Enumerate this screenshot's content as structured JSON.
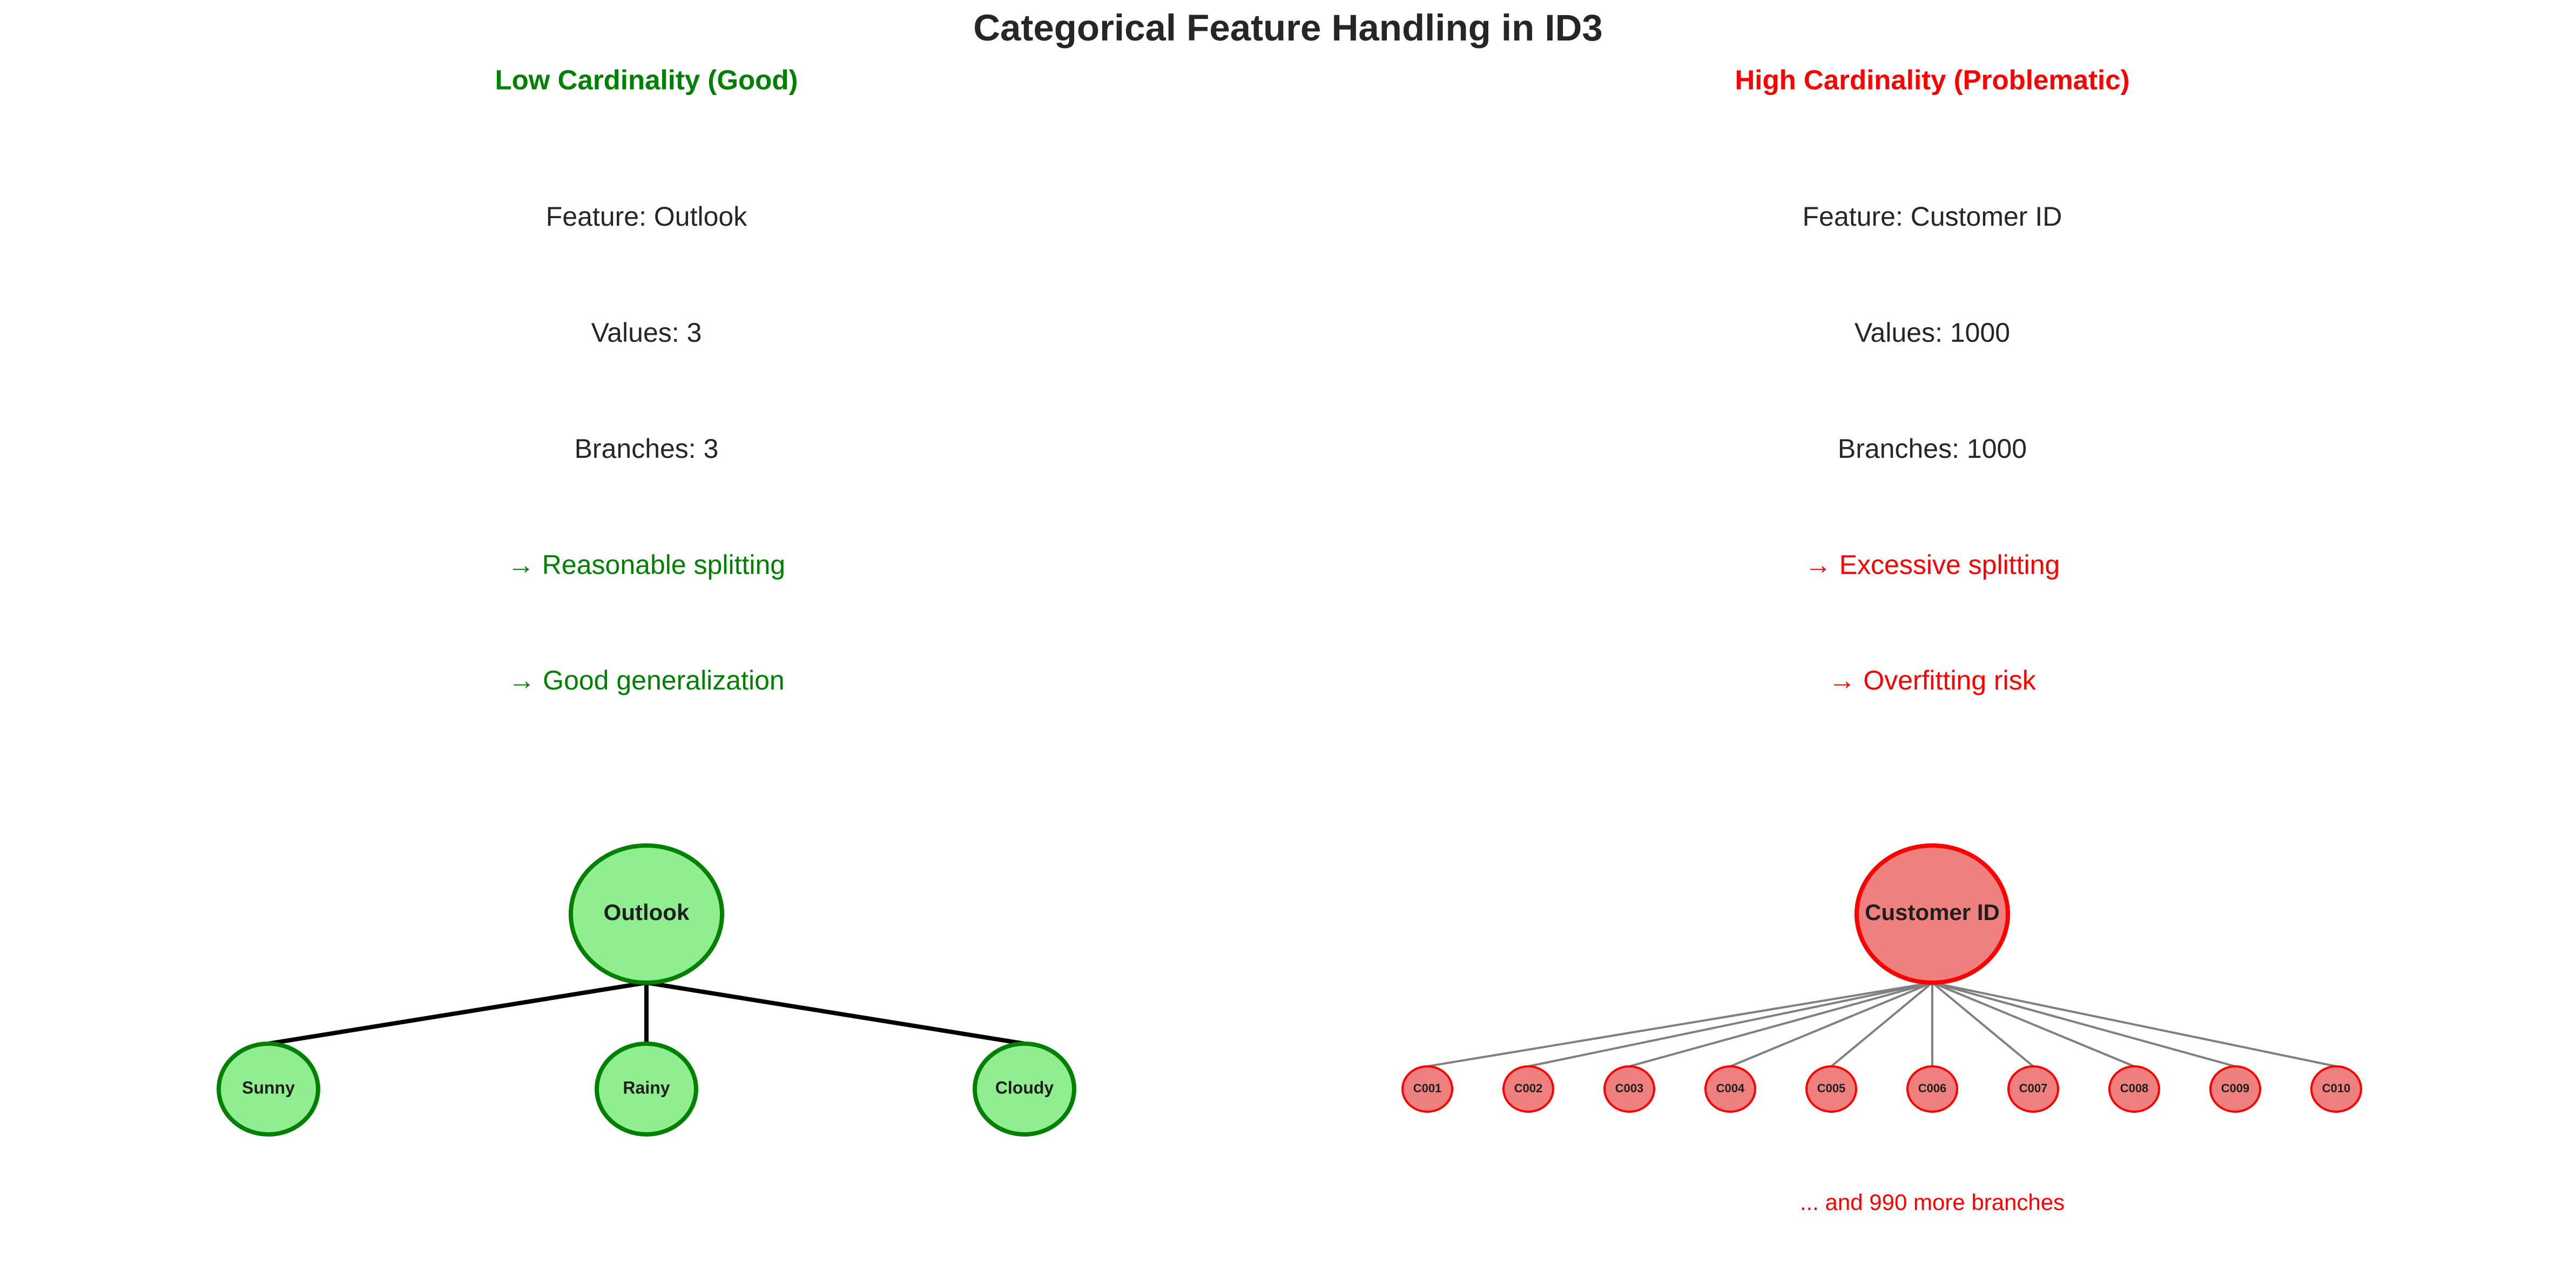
{
  "title": "Categorical Feature Handling in ID3",
  "colors": {
    "good": "#008000",
    "bad": "#ff0000",
    "good_fill": "#90ee90",
    "bad_fill": "#f08080",
    "text": "#262626",
    "good_edge": "#000000",
    "bad_edge": "#808080"
  },
  "panels": {
    "left": {
      "heading": "Low Cardinality (Good)",
      "feature": "Feature: Outlook",
      "values": "Values: 3",
      "branches": "Branches: 3",
      "note1": "→ Reasonable splitting",
      "note2": "→ Good generalization",
      "tree": {
        "root": "Outlook",
        "children": [
          "Sunny",
          "Rainy",
          "Cloudy"
        ]
      }
    },
    "right": {
      "heading": "High Cardinality (Problematic)",
      "feature": "Feature: Customer ID",
      "values": "Values: 1000",
      "branches": "Branches: 1000",
      "note1": "→ Excessive splitting",
      "note2": "→ Overfitting risk",
      "tree": {
        "root": "Customer ID",
        "children": [
          "C001",
          "C002",
          "C003",
          "C004",
          "C005",
          "C006",
          "C007",
          "C008",
          "C009",
          "C010"
        ]
      },
      "footnote": "... and 990 more branches"
    }
  }
}
